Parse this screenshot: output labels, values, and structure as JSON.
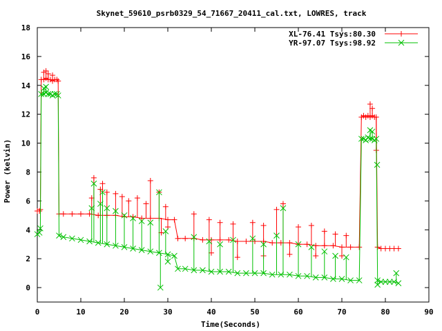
{
  "chart_data": {
    "type": "line",
    "title": "Skynet_59610_psrb0329_54_71667_20411_cal.txt, LOWRES, track",
    "xlabel": "Time(Seconds)",
    "ylabel": "Power (kelvin)",
    "xlim": [
      0,
      90
    ],
    "ylim": [
      -1,
      18
    ],
    "xticks": [
      0,
      10,
      20,
      30,
      40,
      50,
      60,
      70,
      80,
      90
    ],
    "yticks": [
      0,
      2,
      4,
      6,
      8,
      10,
      12,
      14,
      16,
      18
    ],
    "grid": false,
    "legend_position": "top-right",
    "series": [
      {
        "name": "XL-76.41 Tsys:80.30",
        "color": "#ff0000",
        "marker": "plus",
        "segments": [
          {
            "x": [
              0,
              0.5,
              0.7
            ],
            "y": [
              5.3,
              5.3,
              5.4
            ]
          },
          {
            "x": [
              0.9,
              1.5,
              2.0,
              2.5,
              3.0,
              3.5,
              4.0,
              4.5,
              4.8
            ],
            "y": [
              14.4,
              14.4,
              14.5,
              14.4,
              14.4,
              14.3,
              14.4,
              14.4,
              14.3
            ]
          },
          {
            "x": [
              5.0,
              6,
              8,
              10,
              12,
              14,
              16,
              18,
              20,
              22,
              24,
              26,
              28,
              30,
              31.5
            ],
            "y": [
              5.1,
              5.1,
              5.1,
              5.1,
              5.1,
              5.0,
              5.0,
              5.0,
              4.9,
              4.9,
              4.8,
              4.8,
              4.8,
              4.7,
              4.7
            ]
          },
          {
            "x": [
              32.3,
              34,
              36,
              38,
              40,
              42,
              44,
              46,
              48,
              50,
              52,
              54,
              56,
              58,
              60,
              62,
              64,
              66,
              68,
              70,
              72,
              74
            ],
            "y": [
              3.4,
              3.4,
              3.4,
              3.3,
              3.3,
              3.3,
              3.3,
              3.2,
              3.2,
              3.2,
              3.2,
              3.1,
              3.1,
              3.1,
              3.0,
              3.0,
              2.9,
              2.9,
              2.9,
              2.8,
              2.8,
              2.8
            ]
          },
          {
            "x": [
              74.5,
              75,
              75.5,
              76,
              76.5,
              77,
              77.5,
              77.9
            ],
            "y": [
              11.8,
              11.9,
              11.8,
              11.9,
              11.8,
              11.9,
              11.8,
              11.8
            ]
          },
          {
            "x": [
              78.2,
              79,
              80,
              81,
              82,
              83
            ],
            "y": [
              2.8,
              2.7,
              2.7,
              2.7,
              2.7,
              2.7
            ]
          }
        ],
        "spikes": [
          [
            1.5,
            14.9
          ],
          [
            2.0,
            15.0
          ],
          [
            2.5,
            14.8
          ],
          [
            3.5,
            14.7
          ],
          [
            12.5,
            6.2
          ],
          [
            13.0,
            7.6
          ],
          [
            14.5,
            6.8
          ],
          [
            15.0,
            7.2
          ],
          [
            16.0,
            6.6
          ],
          [
            18.0,
            6.5
          ],
          [
            19.5,
            6.3
          ],
          [
            21.0,
            6.0
          ],
          [
            23.0,
            6.2
          ],
          [
            25.0,
            5.8
          ],
          [
            26.0,
            7.4
          ],
          [
            28.0,
            6.6
          ],
          [
            29.5,
            5.6
          ],
          [
            36.0,
            5.1
          ],
          [
            39.5,
            4.7
          ],
          [
            42.0,
            4.5
          ],
          [
            45.0,
            4.4
          ],
          [
            49.5,
            4.5
          ],
          [
            52.0,
            4.3
          ],
          [
            55.0,
            5.4
          ],
          [
            56.5,
            5.8
          ],
          [
            60.0,
            4.2
          ],
          [
            63.0,
            4.3
          ],
          [
            66.0,
            3.9
          ],
          [
            68.5,
            3.7
          ],
          [
            71.0,
            3.6
          ],
          [
            76.5,
            12.7
          ],
          [
            77.0,
            12.4
          ]
        ],
        "dips": [
          [
            28.5,
            3.8
          ],
          [
            30.0,
            4.2
          ],
          [
            40.0,
            2.4
          ],
          [
            46.0,
            2.1
          ],
          [
            52.0,
            2.2
          ],
          [
            58.0,
            2.3
          ],
          [
            64.0,
            2.2
          ],
          [
            70.0,
            2.2
          ],
          [
            77.9,
            9.5
          ]
        ]
      },
      {
        "name": "YR-97.07 Tsys:98.92",
        "color": "#00c000",
        "marker": "cross",
        "segments": [
          {
            "x": [
              0,
              0.5,
              0.7
            ],
            "y": [
              3.7,
              3.8,
              4.1
            ]
          },
          {
            "x": [
              0.9,
              1.5,
              2.0,
              2.5,
              3.0,
              3.5,
              4.0,
              4.5,
              4.8
            ],
            "y": [
              13.4,
              13.4,
              13.5,
              13.4,
              13.4,
              13.3,
              13.4,
              13.4,
              13.3
            ]
          },
          {
            "x": [
              5.0,
              6,
              8,
              10,
              12,
              14,
              16,
              18,
              20,
              22,
              24,
              26,
              28,
              30,
              31.5
            ],
            "y": [
              3.6,
              3.5,
              3.4,
              3.3,
              3.2,
              3.1,
              3.0,
              2.9,
              2.8,
              2.7,
              2.6,
              2.5,
              2.4,
              2.3,
              2.2
            ]
          },
          {
            "x": [
              32.3,
              34,
              36,
              38,
              40,
              42,
              44,
              46,
              48,
              50,
              52,
              54,
              56,
              58,
              60,
              62,
              64,
              66,
              68,
              70,
              72,
              74
            ],
            "y": [
              1.3,
              1.3,
              1.2,
              1.2,
              1.1,
              1.1,
              1.1,
              1.0,
              1.0,
              1.0,
              1.0,
              0.9,
              0.9,
              0.9,
              0.8,
              0.8,
              0.7,
              0.7,
              0.6,
              0.6,
              0.5,
              0.5
            ]
          },
          {
            "x": [
              74.5,
              75,
              75.5,
              76,
              76.5,
              77,
              77.5,
              77.9
            ],
            "y": [
              10.3,
              10.3,
              10.2,
              10.4,
              10.3,
              10.3,
              10.2,
              10.3
            ]
          },
          {
            "x": [
              78.2,
              79,
              80,
              81,
              82,
              83
            ],
            "y": [
              0.5,
              0.4,
              0.4,
              0.4,
              0.4,
              0.3
            ]
          }
        ],
        "spikes": [
          [
            1.5,
            13.8
          ],
          [
            2.0,
            13.9
          ],
          [
            12.5,
            5.5
          ],
          [
            13.0,
            7.2
          ],
          [
            14.5,
            5.8
          ],
          [
            15.0,
            6.6
          ],
          [
            16.0,
            5.5
          ],
          [
            18.0,
            5.3
          ],
          [
            20.0,
            5.0
          ],
          [
            22.0,
            4.8
          ],
          [
            24.0,
            4.6
          ],
          [
            26.0,
            4.5
          ],
          [
            28.0,
            6.6
          ],
          [
            29.5,
            3.9
          ],
          [
            36.0,
            3.5
          ],
          [
            39.5,
            3.2
          ],
          [
            42.0,
            3.0
          ],
          [
            45.0,
            3.3
          ],
          [
            49.5,
            3.4
          ],
          [
            52.0,
            3.0
          ],
          [
            55.0,
            3.6
          ],
          [
            56.5,
            5.5
          ],
          [
            60.0,
            3.0
          ],
          [
            63.0,
            2.8
          ],
          [
            66.0,
            2.5
          ],
          [
            68.5,
            2.2
          ],
          [
            71.0,
            2.1
          ],
          [
            76.5,
            10.9
          ],
          [
            77.0,
            10.8
          ],
          [
            78.1,
            8.5
          ],
          [
            82.5,
            1.0
          ]
        ],
        "dips": [
          [
            28.3,
            0.0
          ],
          [
            30.0,
            1.8
          ],
          [
            78.2,
            0.2
          ]
        ]
      }
    ]
  }
}
